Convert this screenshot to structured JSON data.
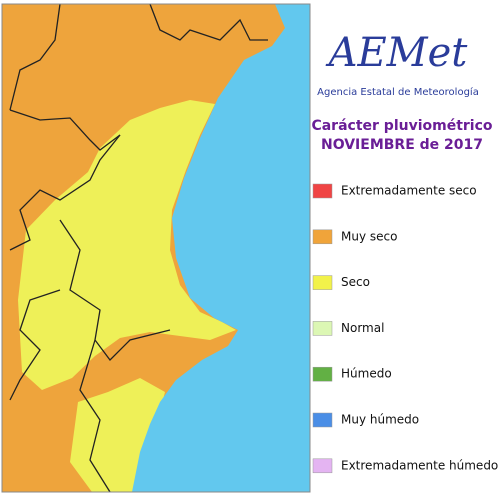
{
  "header": {
    "logo": "AEMet",
    "agency": "Agencia Estatal de Meteorología",
    "title": "Carácter pluviométrico",
    "subtitle": "NOVIEMBRE de 2017"
  },
  "legend": [
    {
      "label": "Extremadamente seco",
      "color": "#f04444"
    },
    {
      "label": "Muy seco",
      "color": "#f0a43a"
    },
    {
      "label": "Seco",
      "color": "#f2f24a"
    },
    {
      "label": "Normal",
      "color": "#dcf7b4"
    },
    {
      "label": "Húmedo",
      "color": "#62b044"
    },
    {
      "label": "Muy húmedo",
      "color": "#4a8ee6"
    },
    {
      "label": "Extremadamente húmedo",
      "color": "#e4b4f2"
    }
  ]
}
